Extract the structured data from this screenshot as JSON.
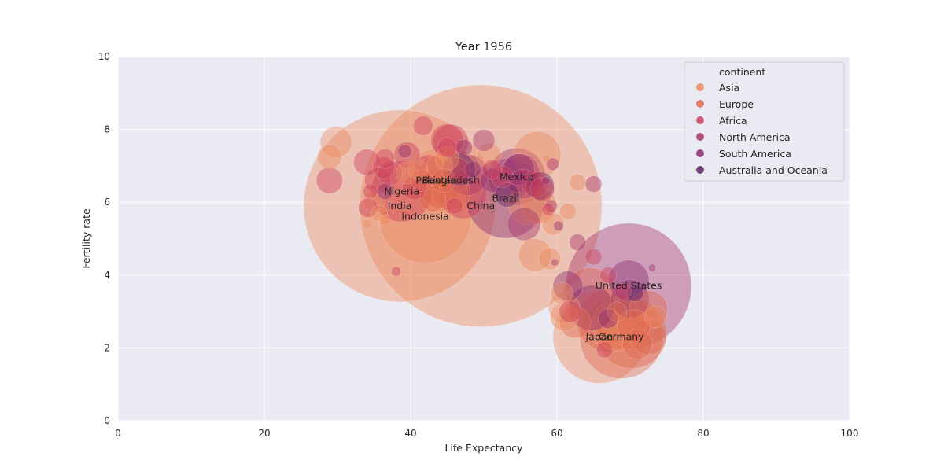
{
  "chart_data": {
    "type": "scatter",
    "title": "Year 1956",
    "xlabel": "Life Expectancy",
    "ylabel": "Fertility rate",
    "xlim": [
      0,
      100
    ],
    "ylim": [
      0,
      10
    ],
    "xticks": [
      0,
      20,
      40,
      60,
      80,
      100
    ],
    "yticks": [
      0,
      2,
      4,
      6,
      8,
      10
    ],
    "grid": true,
    "legend": {
      "title": "continent",
      "placement": "top-right",
      "entries": [
        "Asia",
        "Europe",
        "Africa",
        "North America",
        "South America",
        "Australia and Oceania"
      ]
    },
    "colors": {
      "Asia": "#eb8a5e",
      "Europe": "#e06a4f",
      "Africa": "#cc3e5b",
      "North America": "#a8346b",
      "South America": "#8a2a6e",
      "Australia and Oceania": "#5e2260"
    },
    "background": "#eaeaf2",
    "labeled_points": [
      {
        "label": "China",
        "x": 49.6,
        "y": 5.9,
        "c": "Asia",
        "pop": 640
      },
      {
        "label": "India",
        "x": 38.5,
        "y": 5.9,
        "c": "Asia",
        "pop": 400
      },
      {
        "label": "Indonesia",
        "x": 42.0,
        "y": 5.6,
        "c": "Asia",
        "pop": 90
      },
      {
        "label": "Pakistan",
        "x": 43.5,
        "y": 6.6,
        "c": "Asia",
        "pop": 40
      },
      {
        "label": "Bangladesh",
        "x": 45.5,
        "y": 6.6,
        "c": "Asia",
        "pop": 45
      },
      {
        "label": "Nigeria",
        "x": 38.8,
        "y": 6.3,
        "c": "Africa",
        "pop": 38
      },
      {
        "label": "Brazil",
        "x": 53.0,
        "y": 6.1,
        "c": "South America",
        "pop": 65
      },
      {
        "label": "Mexico",
        "x": 54.5,
        "y": 6.7,
        "c": "North America",
        "pop": 33
      },
      {
        "label": "United States",
        "x": 69.8,
        "y": 3.7,
        "c": "North America",
        "pop": 168
      },
      {
        "label": "Japan",
        "x": 65.8,
        "y": 2.3,
        "c": "Asia",
        "pop": 90
      },
      {
        "label": "Germany",
        "x": 68.8,
        "y": 2.3,
        "c": "Europe",
        "pop": 72
      }
    ],
    "points": [
      {
        "x": 29.8,
        "y": 7.65,
        "c": "Asia",
        "pop": 9
      },
      {
        "x": 28.9,
        "y": 7.25,
        "c": "Asia",
        "pop": 5
      },
      {
        "x": 28.9,
        "y": 6.6,
        "c": "Africa",
        "pop": 6
      },
      {
        "x": 34.0,
        "y": 7.1,
        "c": "Africa",
        "pop": 6
      },
      {
        "x": 36.5,
        "y": 7.2,
        "c": "Africa",
        "pop": 3
      },
      {
        "x": 36.3,
        "y": 6.95,
        "c": "Africa",
        "pop": 4
      },
      {
        "x": 37.2,
        "y": 6.8,
        "c": "Africa",
        "pop": 5
      },
      {
        "x": 35.5,
        "y": 6.6,
        "c": "Africa",
        "pop": 6
      },
      {
        "x": 34.5,
        "y": 6.3,
        "c": "Africa",
        "pop": 1.5
      },
      {
        "x": 35.0,
        "y": 6.05,
        "c": "Asia",
        "pop": 4
      },
      {
        "x": 34.2,
        "y": 5.85,
        "c": "Africa",
        "pop": 3
      },
      {
        "x": 35.7,
        "y": 5.7,
        "c": "Asia",
        "pop": 2
      },
      {
        "x": 36.5,
        "y": 5.5,
        "c": "Asia",
        "pop": 0.6
      },
      {
        "x": 34.1,
        "y": 5.4,
        "c": "Asia",
        "pop": 0.4
      },
      {
        "x": 36.5,
        "y": 6.3,
        "c": "South America",
        "pop": 2
      },
      {
        "x": 39.2,
        "y": 7.4,
        "c": "South America",
        "pop": 1.2
      },
      {
        "x": 39.5,
        "y": 7.3,
        "c": "Africa",
        "pop": 6
      },
      {
        "x": 39.5,
        "y": 6.8,
        "c": "Asia",
        "pop": 4
      },
      {
        "x": 38.0,
        "y": 4.1,
        "c": "Africa",
        "pop": 0.5
      },
      {
        "x": 41.7,
        "y": 8.1,
        "c": "Africa",
        "pop": 3
      },
      {
        "x": 41.0,
        "y": 6.9,
        "c": "Asia",
        "pop": 3
      },
      {
        "x": 41.5,
        "y": 6.6,
        "c": "Europe",
        "pop": 4
      },
      {
        "x": 42.5,
        "y": 6.9,
        "c": "Africa",
        "pop": 8
      },
      {
        "x": 43.3,
        "y": 6.8,
        "c": "Europe",
        "pop": 10
      },
      {
        "x": 44.0,
        "y": 7.0,
        "c": "Asia",
        "pop": 6
      },
      {
        "x": 45.0,
        "y": 7.2,
        "c": "Asia",
        "pop": 5
      },
      {
        "x": 45.0,
        "y": 7.7,
        "c": "Africa",
        "pop": 10
      },
      {
        "x": 45.5,
        "y": 7.65,
        "c": "Africa",
        "pop": 12
      },
      {
        "x": 45.0,
        "y": 7.5,
        "c": "Africa",
        "pop": 3
      },
      {
        "x": 44.0,
        "y": 6.4,
        "c": "Europe",
        "pop": 16
      },
      {
        "x": 45.5,
        "y": 6.3,
        "c": "Europe",
        "pop": 14
      },
      {
        "x": 46.2,
        "y": 6.85,
        "c": "Africa",
        "pop": 7
      },
      {
        "x": 46.6,
        "y": 6.9,
        "c": "Australia and Oceania",
        "pop": 10
      },
      {
        "x": 47.3,
        "y": 7.5,
        "c": "South America",
        "pop": 2
      },
      {
        "x": 47.8,
        "y": 6.75,
        "c": "North America",
        "pop": 16
      },
      {
        "x": 47.2,
        "y": 6.2,
        "c": "Africa",
        "pop": 22
      },
      {
        "x": 46.0,
        "y": 5.9,
        "c": "Africa",
        "pop": 2
      },
      {
        "x": 44.5,
        "y": 6.6,
        "c": "Europe",
        "pop": 5
      },
      {
        "x": 50.0,
        "y": 7.7,
        "c": "North America",
        "pop": 4
      },
      {
        "x": 50.7,
        "y": 7.3,
        "c": "Asia",
        "pop": 5
      },
      {
        "x": 51.1,
        "y": 6.9,
        "c": "Africa",
        "pop": 3
      },
      {
        "x": 51.2,
        "y": 6.6,
        "c": "South America",
        "pop": 5
      },
      {
        "x": 52.5,
        "y": 6.7,
        "c": "Africa",
        "pop": 4
      },
      {
        "x": 55.0,
        "y": 6.8,
        "c": "North America",
        "pop": 14
      },
      {
        "x": 54.8,
        "y": 6.9,
        "c": "South America",
        "pop": 9
      },
      {
        "x": 55.5,
        "y": 6.5,
        "c": "North America",
        "pop": 8
      },
      {
        "x": 57.3,
        "y": 7.3,
        "c": "Asia",
        "pop": 22
      },
      {
        "x": 57.7,
        "y": 6.45,
        "c": "Australia and Oceania",
        "pop": 7
      },
      {
        "x": 57.0,
        "y": 6.5,
        "c": "Africa",
        "pop": 6
      },
      {
        "x": 58.0,
        "y": 6.35,
        "c": "Africa",
        "pop": 5
      },
      {
        "x": 57.5,
        "y": 5.9,
        "c": "Asia",
        "pop": 12
      },
      {
        "x": 56.3,
        "y": 5.95,
        "c": "Asia",
        "pop": 18
      },
      {
        "x": 55.5,
        "y": 5.4,
        "c": "North America",
        "pop": 10
      },
      {
        "x": 58.5,
        "y": 6.6,
        "c": "South America",
        "pop": 0.3
      },
      {
        "x": 58.5,
        "y": 7.2,
        "c": "Asia",
        "pop": 0.2
      },
      {
        "x": 59.4,
        "y": 7.05,
        "c": "North America",
        "pop": 1
      },
      {
        "x": 59.2,
        "y": 5.9,
        "c": "North America",
        "pop": 1
      },
      {
        "x": 58.8,
        "y": 5.8,
        "c": "Africa",
        "pop": 1
      },
      {
        "x": 59.5,
        "y": 5.4,
        "c": "Asia",
        "pop": 4
      },
      {
        "x": 60.2,
        "y": 5.35,
        "c": "South America",
        "pop": 0.5
      },
      {
        "x": 57.0,
        "y": 4.55,
        "c": "Asia",
        "pop": 10
      },
      {
        "x": 59.0,
        "y": 4.45,
        "c": "Asia",
        "pop": 4
      },
      {
        "x": 59.7,
        "y": 4.35,
        "c": "North America",
        "pop": 0.2
      },
      {
        "x": 61.5,
        "y": 5.75,
        "c": "Asia",
        "pop": 2
      },
      {
        "x": 62.8,
        "y": 6.55,
        "c": "Asia",
        "pop": 2
      },
      {
        "x": 65.0,
        "y": 6.5,
        "c": "North America",
        "pop": 2
      },
      {
        "x": 62.8,
        "y": 4.9,
        "c": "North America",
        "pop": 2
      },
      {
        "x": 65.0,
        "y": 4.5,
        "c": "Africa",
        "pop": 2
      },
      {
        "x": 61.5,
        "y": 3.7,
        "c": "South America",
        "pop": 8
      },
      {
        "x": 60.7,
        "y": 3.5,
        "c": "Asia",
        "pop": 4
      },
      {
        "x": 61.0,
        "y": 3.1,
        "c": "Asia",
        "pop": 9
      },
      {
        "x": 61.0,
        "y": 2.85,
        "c": "Asia",
        "pop": 7
      },
      {
        "x": 61.8,
        "y": 3.0,
        "c": "Africa",
        "pop": 4
      },
      {
        "x": 62.5,
        "y": 2.7,
        "c": "Europe",
        "pop": 9
      },
      {
        "x": 64.5,
        "y": 3.45,
        "c": "Europe",
        "pop": 30
      },
      {
        "x": 64.7,
        "y": 3.1,
        "c": "South America",
        "pop": 20
      },
      {
        "x": 67.0,
        "y": 2.75,
        "c": "Europe",
        "pop": 40
      },
      {
        "x": 67.0,
        "y": 2.8,
        "c": "South America",
        "pop": 3
      },
      {
        "x": 67.0,
        "y": 4.0,
        "c": "Africa",
        "pop": 2
      },
      {
        "x": 66.5,
        "y": 1.95,
        "c": "Africa",
        "pop": 2
      },
      {
        "x": 68.5,
        "y": 2.65,
        "c": "Asia",
        "pop": 28
      },
      {
        "x": 69.8,
        "y": 3.85,
        "c": "South America",
        "pop": 16
      },
      {
        "x": 70.0,
        "y": 3.35,
        "c": "South America",
        "pop": 14
      },
      {
        "x": 70.7,
        "y": 3.5,
        "c": "Australia and Oceania",
        "pop": 2
      },
      {
        "x": 70.2,
        "y": 2.4,
        "c": "Europe",
        "pop": 51
      },
      {
        "x": 70.5,
        "y": 2.6,
        "c": "Europe",
        "pop": 10
      },
      {
        "x": 72.5,
        "y": 3.05,
        "c": "Europe",
        "pop": 14
      },
      {
        "x": 72.5,
        "y": 2.3,
        "c": "Europe",
        "pop": 12
      },
      {
        "x": 73.5,
        "y": 2.85,
        "c": "Asia",
        "pop": 4
      },
      {
        "x": 69.0,
        "y": 3.55,
        "c": "Africa",
        "pop": 2
      },
      {
        "x": 68.2,
        "y": 3.0,
        "c": "Europe",
        "pop": 3
      },
      {
        "x": 71.0,
        "y": 2.1,
        "c": "Europe",
        "pop": 8
      },
      {
        "x": 73.0,
        "y": 4.2,
        "c": "North America",
        "pop": 0.2
      },
      {
        "x": 53.2,
        "y": 6.2,
        "c": "Australia and Oceania",
        "pop": 5
      },
      {
        "x": 48.5,
        "y": 6.9,
        "c": "South America",
        "pop": 2
      },
      {
        "x": 43.0,
        "y": 6.1,
        "c": "Europe",
        "pop": 6
      },
      {
        "x": 40.5,
        "y": 6.4,
        "c": "Africa",
        "pop": 5
      }
    ]
  }
}
